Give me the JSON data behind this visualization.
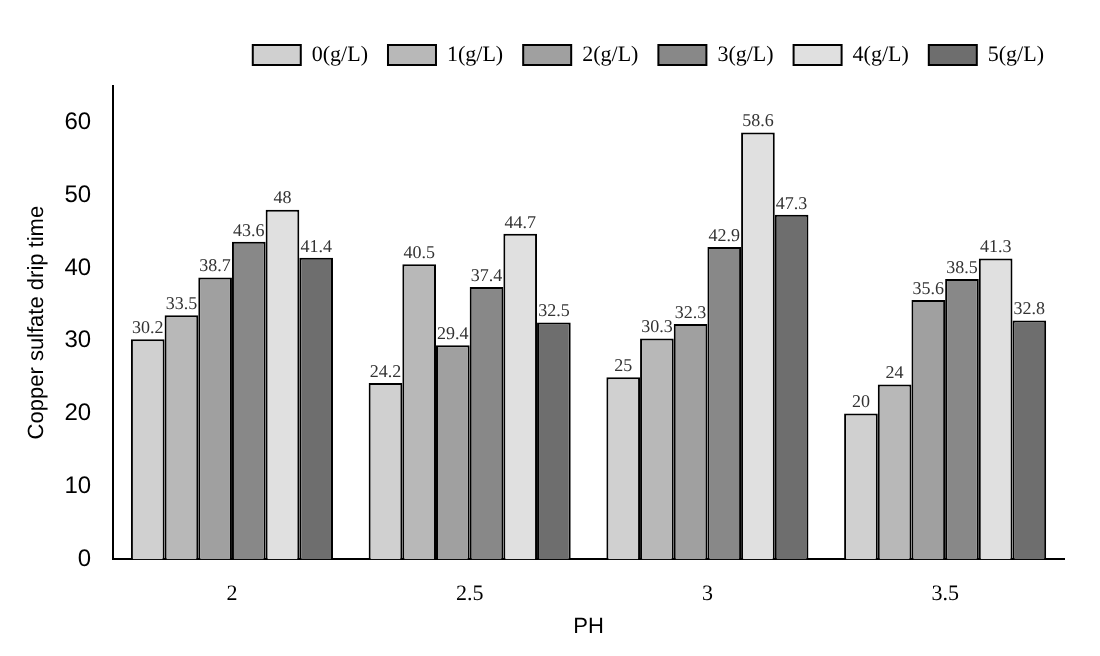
{
  "chart_data": {
    "type": "bar",
    "xlabel": "PH",
    "ylabel": "Copper sulfate drip time",
    "categories": [
      "2",
      "2.5",
      "3",
      "3.5"
    ],
    "series": [
      {
        "name": "0(g/L)",
        "color": "#d0d0d0",
        "values": [
          30.2,
          24.2,
          25,
          20
        ]
      },
      {
        "name": "1(g/L)",
        "color": "#b8b8b8",
        "values": [
          33.5,
          40.5,
          30.3,
          24
        ]
      },
      {
        "name": "2(g/L)",
        "color": "#a0a0a0",
        "values": [
          38.7,
          29.4,
          32.3,
          35.6
        ]
      },
      {
        "name": "3(g/L)",
        "color": "#888888",
        "values": [
          43.6,
          37.4,
          42.9,
          38.5
        ]
      },
      {
        "name": "4(g/L)",
        "color": "#e0e0e0",
        "values": [
          48,
          44.7,
          58.6,
          41.3
        ]
      },
      {
        "name": "5(g/L)",
        "color": "#6e6e6e",
        "values": [
          41.4,
          32.5,
          47.3,
          32.8
        ]
      }
    ],
    "ylim": [
      0,
      65
    ],
    "yticks": [
      0,
      10,
      20,
      30,
      40,
      50,
      60
    ],
    "grid": false,
    "legend": "top right",
    "data_labels": true
  }
}
